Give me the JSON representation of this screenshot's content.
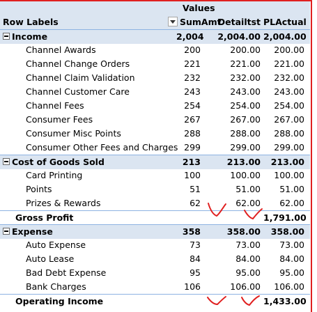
{
  "header": {
    "values_caption": "Values",
    "row_labels": "Row Labels",
    "col1": "SumAmt",
    "col2": "Detailtst",
    "col3": "PLActual"
  },
  "rows": [
    {
      "label": "Income",
      "c1": "2,004",
      "c2": "2,004.00",
      "c3": "2,004.00"
    },
    {
      "label": "Channel Awards",
      "c1": "200",
      "c2": "200.00",
      "c3": "200.00"
    },
    {
      "label": "Channel Change Orders",
      "c1": "221",
      "c2": "221.00",
      "c3": "221.00"
    },
    {
      "label": "Channel Claim Validation",
      "c1": "232",
      "c2": "232.00",
      "c3": "232.00"
    },
    {
      "label": "Channel Customer Care",
      "c1": "243",
      "c2": "243.00",
      "c3": "243.00"
    },
    {
      "label": "Channel Fees",
      "c1": "254",
      "c2": "254.00",
      "c3": "254.00"
    },
    {
      "label": "Consumer Fees",
      "c1": "267",
      "c2": "267.00",
      "c3": "267.00"
    },
    {
      "label": "Consumer Misc Points",
      "c1": "288",
      "c2": "288.00",
      "c3": "288.00"
    },
    {
      "label": "Consumer Other Fees and Charges",
      "c1": "299",
      "c2": "299.00",
      "c3": "299.00"
    },
    {
      "label": "Cost of Goods Sold",
      "c1": "213",
      "c2": "213.00",
      "c3": "213.00"
    },
    {
      "label": "Card Printing",
      "c1": "100",
      "c2": "100.00",
      "c3": "100.00"
    },
    {
      "label": "Points",
      "c1": "51",
      "c2": "51.00",
      "c3": "51.00"
    },
    {
      "label": "Prizes & Rewards",
      "c1": "62",
      "c2": "62.00",
      "c3": "62.00"
    },
    {
      "label": "Gross Profit",
      "c1": "",
      "c2": "",
      "c3": "1,791.00"
    },
    {
      "label": "Expense",
      "c1": "358",
      "c2": "358.00",
      "c3": "358.00"
    },
    {
      "label": "Auto Expense",
      "c1": "73",
      "c2": "73.00",
      "c3": "73.00"
    },
    {
      "label": "Auto Lease",
      "c1": "84",
      "c2": "84.00",
      "c3": "84.00"
    },
    {
      "label": "Bad Debt Expense",
      "c1": "95",
      "c2": "95.00",
      "c3": "95.00"
    },
    {
      "label": "Bank Charges",
      "c1": "106",
      "c2": "106.00",
      "c3": "106.00"
    },
    {
      "label": "Operating Income",
      "c1": "",
      "c2": "",
      "c3": "1,433.00"
    }
  ],
  "colors": {
    "header_fill": "#dbe5f1",
    "border_blue": "#8db3e2",
    "annotation_red": "#e02020"
  },
  "icons": {
    "collapse": "minus-box-icon",
    "filter": "dropdown-arrow-icon"
  }
}
